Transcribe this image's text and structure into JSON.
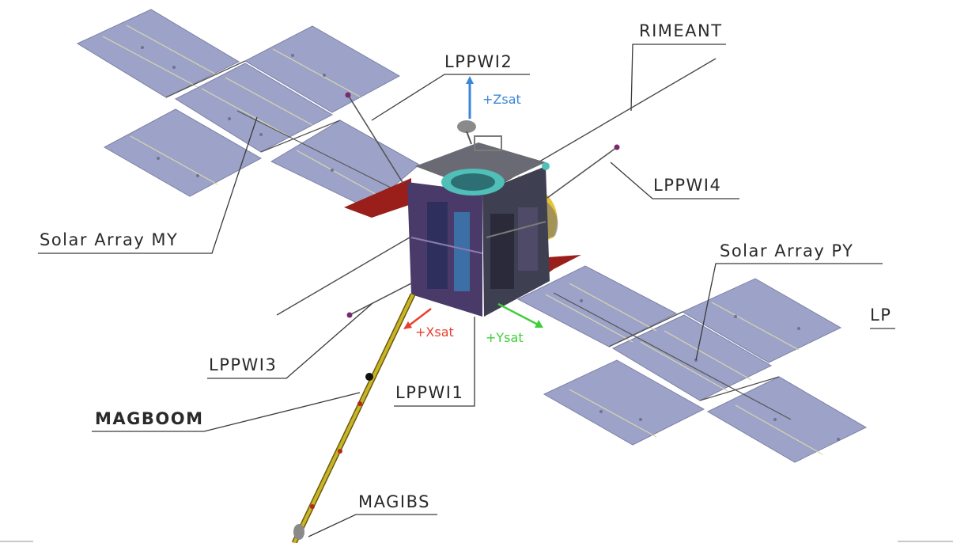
{
  "labels": {
    "rimeant": "RIMEANT",
    "lppwi2": "LPPWI2",
    "lppwi4": "LPPWI4",
    "lppwi3": "LPPWI3",
    "lppwi1": "LPPWI1",
    "lp": "LP",
    "solar_array_my": "Solar Array MY",
    "solar_array_py": "Solar Array PY",
    "magboom": "MAGBOOM",
    "magibs": "MAGIBS"
  },
  "axes": {
    "z": {
      "label": "+Zsat",
      "color": "#3a86d8"
    },
    "x": {
      "label": "+Xsat",
      "color": "#e8402e"
    },
    "y": {
      "label": "+Ysat",
      "color": "#3fcf3a"
    }
  },
  "colors": {
    "solar_panel": "#9da3c8",
    "radiator": "#9a1f1a",
    "boom": "#c9b526"
  }
}
